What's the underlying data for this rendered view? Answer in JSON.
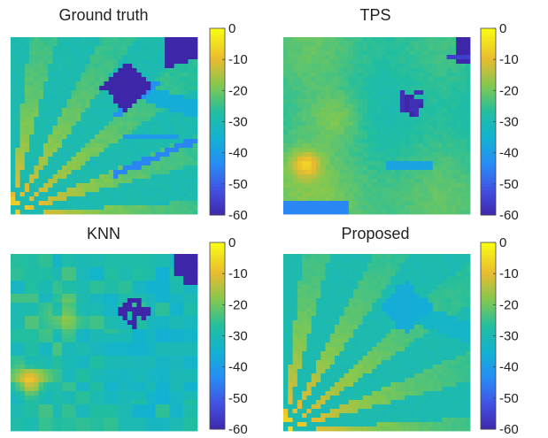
{
  "chart_data": [
    {
      "type": "heatmap",
      "title": "Ground truth",
      "colorbar": {
        "ticks": [
          0,
          -10,
          -20,
          -30,
          -40,
          -50,
          -60
        ],
        "range": [
          -60,
          0
        ]
      },
      "features": {
        "background": -28,
        "rays": {
          "origin": "bottom-left",
          "count": 9,
          "peak": -5
        },
        "blocks": [
          {
            "shape": "diamond",
            "position": "upper-center",
            "value": -60
          },
          {
            "shape": "corner-wedge",
            "position": "top-right",
            "value": -60
          }
        ],
        "streaks": "thin blue streaks toward right side"
      }
    },
    {
      "type": "heatmap",
      "title": "TPS",
      "colorbar": {
        "ticks": [
          0,
          -10,
          -20,
          -30,
          -40,
          -50,
          -60
        ],
        "range": [
          -60,
          0
        ]
      },
      "features": {
        "background": -24,
        "blobs": "smooth yellow-green interpolation",
        "blocks": [
          {
            "shape": "irregular",
            "position": "center",
            "value": -60
          },
          {
            "shape": "small-wedge",
            "position": "top-right",
            "value": -60
          }
        ]
      }
    },
    {
      "type": "heatmap",
      "title": "KNN",
      "colorbar": {
        "ticks": [
          0,
          -10,
          -20,
          -30,
          -40,
          -50,
          -60
        ],
        "range": [
          -60,
          0
        ]
      },
      "features": {
        "background": -26,
        "texture": "blocky nearest-neighbour patches",
        "blocks": [
          {
            "shape": "irregular",
            "position": "upper-center",
            "value": -60
          },
          {
            "shape": "corner-wedge",
            "position": "top-right",
            "value": -60
          }
        ]
      }
    },
    {
      "type": "heatmap",
      "title": "Proposed",
      "colorbar": {
        "ticks": [
          0,
          -10,
          -20,
          -30,
          -40,
          -50,
          -60
        ],
        "range": [
          -60,
          0
        ]
      },
      "features": {
        "background": -28,
        "rays": {
          "origin": "bottom-left",
          "count": 9,
          "peak": -5
        },
        "blocks": [
          {
            "shape": "faint-square",
            "position": "upper-center",
            "value": -38
          }
        ]
      }
    }
  ]
}
